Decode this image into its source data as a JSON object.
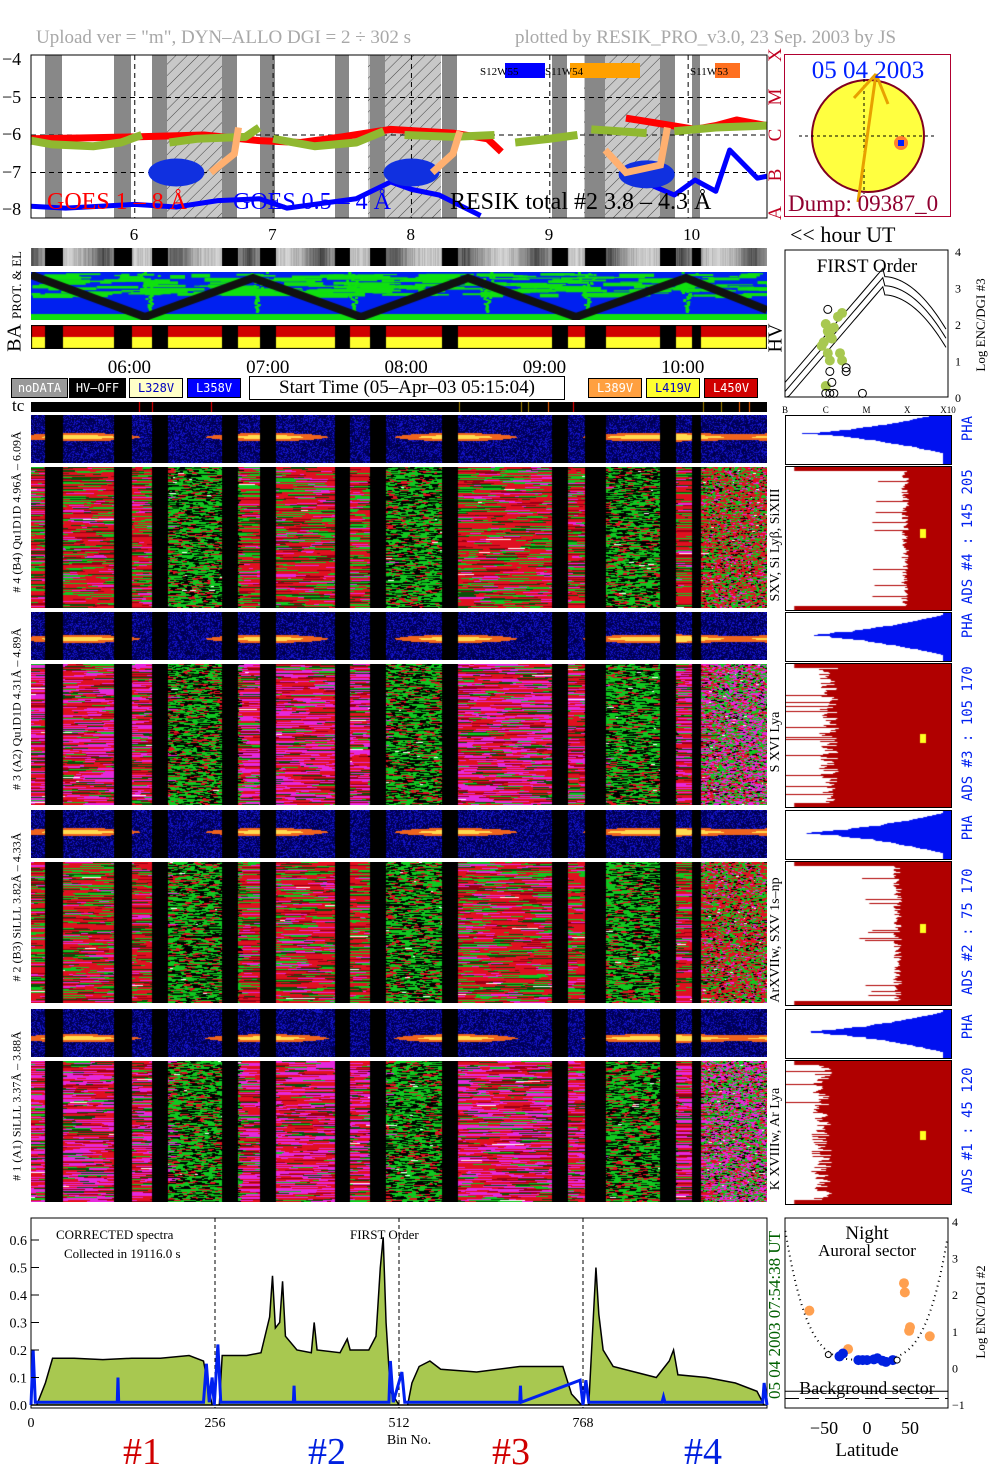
{
  "header": {
    "left": "Upload ver = \"m\", DYN–ALLO DGI =   2 ÷ 302 s",
    "right": "plotted by RESIK_PRO_v3.0, 23 Sep. 2003 by JS"
  },
  "sun": {
    "date": "05 04 2003",
    "dump": "Dump: 09387_0",
    "colors": {
      "disk": "#ffff40",
      "limb": "#800020",
      "track": "#e8a000"
    }
  },
  "hour_ut": "<< hour UT",
  "labels": {
    "prot": "PROT. & EL",
    "ba": "BA",
    "hv": "HV",
    "tc": "tc",
    "ut_stamp": "05 04 2003   07:54:38 UT"
  },
  "time_ticks": [
    "06:00",
    "07:00",
    "08:00",
    "09:00",
    "10:00"
  ],
  "legend_left": [
    {
      "label": "noDATA",
      "bg": "#999999",
      "fg": "#ffffff"
    },
    {
      "label": "HV–OFF",
      "bg": "#000000",
      "fg": "#ffffff"
    },
    {
      "label": "L328V",
      "bg": "#ffffc8",
      "fg": "#0000c0"
    },
    {
      "label": "L358V",
      "bg": "#0000ff",
      "fg": "#ffffff"
    }
  ],
  "legend_right": [
    {
      "label": "L389V",
      "bg": "#ffa040",
      "fg": "#ffffff"
    },
    {
      "label": "L419V",
      "bg": "#ffff30",
      "fg": "#0000c0"
    },
    {
      "label": "L450V",
      "bg": "#d00000",
      "fg": "#ffffff"
    }
  ],
  "start_time": "Start Time (05–Apr–03 05:15:04)",
  "channels": [
    {
      "left_label": "# 4 (B4) Qu1D1D 4.96Å – 6.09Å",
      "lines": "SXV, Si Lyβ, SiXIII",
      "ads": "ADS #4 :   145 205",
      "pha": "PHA"
    },
    {
      "left_label": "# 3 (A2) Qu1D1D 4.31Å – 4.89Å",
      "lines": "S XVI Lya",
      "ads": "ADS #3 :   105 170",
      "pha": "PHA"
    },
    {
      "left_label": "# 2 (B3) SiLLL 3.82Å – 4.33Å",
      "lines": "ArXVIIw, SXV 1s–np",
      "ads": "ADS #2 :   75 170",
      "pha": "PHA"
    },
    {
      "left_label": "# 1 (A1) SiLLL 3.37Å – 3.88Å",
      "lines": "K XVIIIw, Ar Lya",
      "ads": "ADS #1 :   45 120",
      "pha": "PHA"
    }
  ],
  "chart_data": [
    {
      "type": "line",
      "xlabel": "<< hour UT",
      "x_ticks": [
        "6",
        "7",
        "8",
        "9",
        "10"
      ],
      "xlim": [
        5.25,
        10.57
      ],
      "ylim": [
        -8.2,
        -3.9
      ],
      "y_ticks": [
        "−4",
        "−5",
        "−6",
        "−7",
        "−8"
      ],
      "class_labels": [
        "A",
        "B",
        "C",
        "M",
        "X"
      ],
      "grid": true,
      "regions": [
        {
          "label": "S12W55",
          "color": "#0000ff"
        },
        {
          "label": "S11W54",
          "color": "#ffa000"
        },
        {
          "label": "S11W53",
          "color": "#ff7020"
        }
      ],
      "series": [
        {
          "name": "GOES 1 – 8 Å",
          "color": "#ff0000",
          "segments": [
            [
              [
                5.25,
                -6.1
              ],
              [
                5.6,
                -6.08
              ],
              [
                6.0,
                -6.05
              ],
              [
                6.5,
                -6.0
              ],
              [
                6.9,
                -6.15
              ],
              [
                7.2,
                -6.2
              ],
              [
                7.5,
                -6.05
              ],
              [
                7.85,
                -5.85
              ],
              [
                8.3,
                -5.95
              ],
              [
                8.55,
                -6.1
              ],
              [
                8.65,
                -6.45
              ]
            ],
            [
              [
                9.55,
                -5.55
              ],
              [
                10.05,
                -5.85
              ],
              [
                10.2,
                -5.75
              ],
              [
                10.35,
                -5.6
              ],
              [
                10.57,
                -5.75
              ]
            ]
          ]
        },
        {
          "name": "GOES 0.5 – 4 Å",
          "color": "#0000ff",
          "segments": [
            [
              [
                5.25,
                -7.9
              ],
              [
                5.5,
                -7.95
              ],
              [
                6.0,
                -7.85
              ],
              [
                6.3,
                -7.92
              ],
              [
                6.6,
                -7.75
              ],
              [
                6.9,
                -7.7
              ],
              [
                7.1,
                -7.95
              ],
              [
                7.4,
                -7.8
              ],
              [
                7.6,
                -7.7
              ],
              [
                7.85,
                -7.25
              ],
              [
                8.0,
                -7.45
              ],
              [
                8.2,
                -7.6
              ],
              [
                8.5,
                -8.15
              ]
            ],
            [
              [
                9.55,
                -7.05
              ],
              [
                9.9,
                -7.6
              ],
              [
                10.05,
                -7.2
              ],
              [
                10.2,
                -7.5
              ],
              [
                10.3,
                -6.4
              ],
              [
                10.5,
                -7.15
              ],
              [
                10.57,
                -7.1
              ]
            ]
          ]
        },
        {
          "name": "RESIK total #2  3.8 – 4.3 Å",
          "color": "#90b830",
          "segments": [
            [
              [
                5.25,
                -6.15
              ],
              [
                5.4,
                -6.25
              ],
              [
                5.7,
                -6.3
              ],
              [
                5.9,
                -6.2
              ],
              [
                6.05,
                -6.0
              ]
            ],
            [
              [
                6.25,
                -6.2
              ],
              [
                6.45,
                -6.1
              ],
              [
                6.8,
                -6.05
              ],
              [
                6.9,
                -5.8
              ]
            ],
            [
              [
                7.0,
                -6.1
              ],
              [
                7.3,
                -6.3
              ],
              [
                7.6,
                -6.2
              ],
              [
                7.8,
                -5.9
              ]
            ],
            [
              [
                7.95,
                -6.0
              ],
              [
                8.3,
                -6.05
              ],
              [
                8.6,
                -6.0
              ]
            ],
            [
              [
                8.75,
                -6.2
              ],
              [
                9.0,
                -6.1
              ],
              [
                9.2,
                -6.0
              ]
            ],
            [
              [
                9.3,
                -5.85
              ],
              [
                9.5,
                -5.9
              ],
              [
                9.7,
                -5.95
              ]
            ],
            [
              [
                9.9,
                -5.9
              ],
              [
                10.2,
                -5.8
              ],
              [
                10.57,
                -5.75
              ]
            ]
          ]
        }
      ]
    },
    {
      "type": "scatter",
      "title": "FIRST Order",
      "ylabel": "Log ENC/DGI #3",
      "x_ticks": [
        "B",
        "C",
        "M",
        "X",
        "X10"
      ],
      "xlim": [
        -7,
        -3
      ],
      "y_ticks": [
        "0",
        "1",
        "2",
        "3",
        "4"
      ],
      "ylim": [
        0,
        4
      ],
      "points_filled": [
        [
          -6.0,
          2.0
        ],
        [
          -5.95,
          1.8
        ],
        [
          -5.9,
          1.7
        ],
        [
          -5.85,
          1.6
        ],
        [
          -5.8,
          1.9
        ],
        [
          -5.7,
          2.2
        ],
        [
          -5.6,
          2.3
        ],
        [
          -6.1,
          1.4
        ],
        [
          -6.05,
          1.5
        ],
        [
          -5.95,
          1.2
        ],
        [
          -5.9,
          1.0
        ],
        [
          -6.0,
          0.3
        ],
        [
          -5.6,
          1.0
        ],
        [
          -5.65,
          1.2
        ]
      ],
      "points_open": [
        [
          -6.0,
          0.1
        ],
        [
          -5.9,
          0.1
        ],
        [
          -5.8,
          0.1
        ],
        [
          -5.9,
          0.7
        ],
        [
          -5.5,
          0.8
        ],
        [
          -5.5,
          0.7
        ],
        [
          -5.1,
          0.1
        ],
        [
          -5.95,
          2.4
        ],
        [
          -5.85,
          0.4
        ]
      ]
    },
    {
      "type": "area",
      "title": "CORRECTED spectra",
      "subtitle": "Collected in 19116.0 s",
      "annotation": "FIRST Order",
      "xlabel": "Bin No.",
      "x_ticks": [
        "0",
        "256",
        "512",
        "768"
      ],
      "xlim": [
        0,
        1024
      ],
      "y_ticks": [
        "0.0",
        "0.1",
        "0.2",
        "0.3",
        "0.4",
        "0.5",
        "0.6"
      ],
      "ylim": [
        0,
        0.66
      ],
      "channel_labels": [
        {
          "label": "#1",
          "color": "#d00000"
        },
        {
          "label": "#2",
          "color": "#0020e0"
        },
        {
          "label": "#3",
          "color": "#d00000"
        },
        {
          "label": "#4",
          "color": "#0020e0"
        }
      ],
      "series": [
        {
          "color": "#a8c850",
          "points": [
            [
              0,
              0
            ],
            [
              8,
              0
            ],
            [
              20,
              0.08
            ],
            [
              30,
              0.17
            ],
            [
              60,
              0.17
            ],
            [
              100,
              0.165
            ],
            [
              140,
              0.17
            ],
            [
              180,
              0.17
            ],
            [
              220,
              0.18
            ],
            [
              240,
              0.16
            ],
            [
              248,
              0.05
            ],
            [
              252,
              0
            ],
            [
              262,
              0
            ],
            [
              266,
              0.18
            ],
            [
              300,
              0.18
            ],
            [
              320,
              0.19
            ],
            [
              332,
              0.32
            ],
            [
              336,
              0.47
            ],
            [
              340,
              0.28
            ],
            [
              346,
              0.3
            ],
            [
              350,
              0.45
            ],
            [
              354,
              0.25
            ],
            [
              370,
              0.2
            ],
            [
              390,
              0.19
            ],
            [
              394,
              0.3
            ],
            [
              398,
              0.2
            ],
            [
              430,
              0.19
            ],
            [
              440,
              0.24
            ],
            [
              444,
              0.2
            ],
            [
              470,
              0.2
            ],
            [
              480,
              0.25
            ],
            [
              486,
              0.5
            ],
            [
              490,
              0.61
            ],
            [
              494,
              0.3
            ],
            [
              500,
              0.05
            ],
            [
              512,
              0
            ],
            [
              524,
              0
            ],
            [
              530,
              0.08
            ],
            [
              540,
              0.14
            ],
            [
              555,
              0.16
            ],
            [
              570,
              0.13
            ],
            [
              620,
              0.12
            ],
            [
              680,
              0.14
            ],
            [
              720,
              0.14
            ],
            [
              740,
              0.14
            ],
            [
              752,
              0.04
            ],
            [
              766,
              0
            ],
            [
              776,
              0
            ],
            [
              780,
              0.2
            ],
            [
              786,
              0.5
            ],
            [
              790,
              0.33
            ],
            [
              796,
              0.2
            ],
            [
              810,
              0.14
            ],
            [
              840,
              0.12
            ],
            [
              870,
              0.1
            ],
            [
              888,
              0.16
            ],
            [
              894,
              0.2
            ],
            [
              900,
              0.11
            ],
            [
              940,
              0.1
            ],
            [
              980,
              0.08
            ],
            [
              1010,
              0.05
            ],
            [
              1020,
              0
            ]
          ]
        },
        {
          "color": "#0020f0",
          "points": [
            [
              0,
              0
            ],
            [
              3,
              0.2
            ],
            [
              6,
              0.01
            ],
            [
              120,
              0.01
            ],
            [
              121,
              0.1
            ],
            [
              122,
              0.01
            ],
            [
              240,
              0.01
            ],
            [
              244,
              0.15
            ],
            [
              248,
              0.01
            ],
            [
              252,
              0.1
            ],
            [
              255,
              0
            ],
            [
              260,
              0.22
            ],
            [
              264,
              0.01
            ],
            [
              365,
              0.01
            ],
            [
              366,
              0.07
            ],
            [
              367,
              0.01
            ],
            [
              498,
              0.01
            ],
            [
              500,
              0.16
            ],
            [
              504,
              0.01
            ],
            [
              516,
              0.12
            ],
            [
              520,
              0.01
            ],
            [
              680,
              0.01
            ],
            [
              681,
              0.07
            ],
            [
              682,
              0.01
            ],
            [
              764,
              0.09
            ],
            [
              768,
              0
            ],
            [
              772,
              0.09
            ],
            [
              776,
              0.01
            ],
            [
              878,
              0.01
            ],
            [
              880,
              0.03
            ],
            [
              882,
              0.01
            ],
            [
              1018,
              0.01
            ],
            [
              1020,
              0.08
            ],
            [
              1024,
              0
            ]
          ]
        }
      ]
    },
    {
      "type": "scatter",
      "title": "Night",
      "subtitle": "Auroral sector",
      "annotation": "Background sector",
      "xlabel": "Latitude",
      "ylabel": "Log ENC/DGI #2",
      "x_ticks": [
        "−50",
        "0",
        "50"
      ],
      "xlim": [
        -95,
        95
      ],
      "y_ticks": [
        "−1",
        "0",
        "1",
        "2",
        "3",
        "4"
      ],
      "ylim": [
        -1,
        4
      ],
      "series": [
        {
          "color": "#ffa050",
          "points": [
            [
              -67,
              1.55
            ],
            [
              -22,
              0.5
            ],
            [
              43,
              2.3
            ],
            [
              44,
              2.05
            ],
            [
              50,
              1.1
            ],
            [
              49,
              1.0
            ],
            [
              73,
              0.85
            ]
          ]
        },
        {
          "color": "#0020e0",
          "points": [
            [
              -32,
              0.3
            ],
            [
              -28,
              0.38
            ],
            [
              -10,
              0.2
            ],
            [
              -5,
              0.2
            ],
            [
              0,
              0.2
            ],
            [
              8,
              0.22
            ],
            [
              12,
              0.25
            ],
            [
              18,
              0.18
            ],
            [
              22,
              0.15
            ],
            [
              30,
              0.2
            ]
          ]
        },
        {
          "color": "#000000",
          "points": [
            [
              -45,
              0.35
            ],
            [
              35,
              0.2
            ]
          ]
        }
      ]
    }
  ]
}
